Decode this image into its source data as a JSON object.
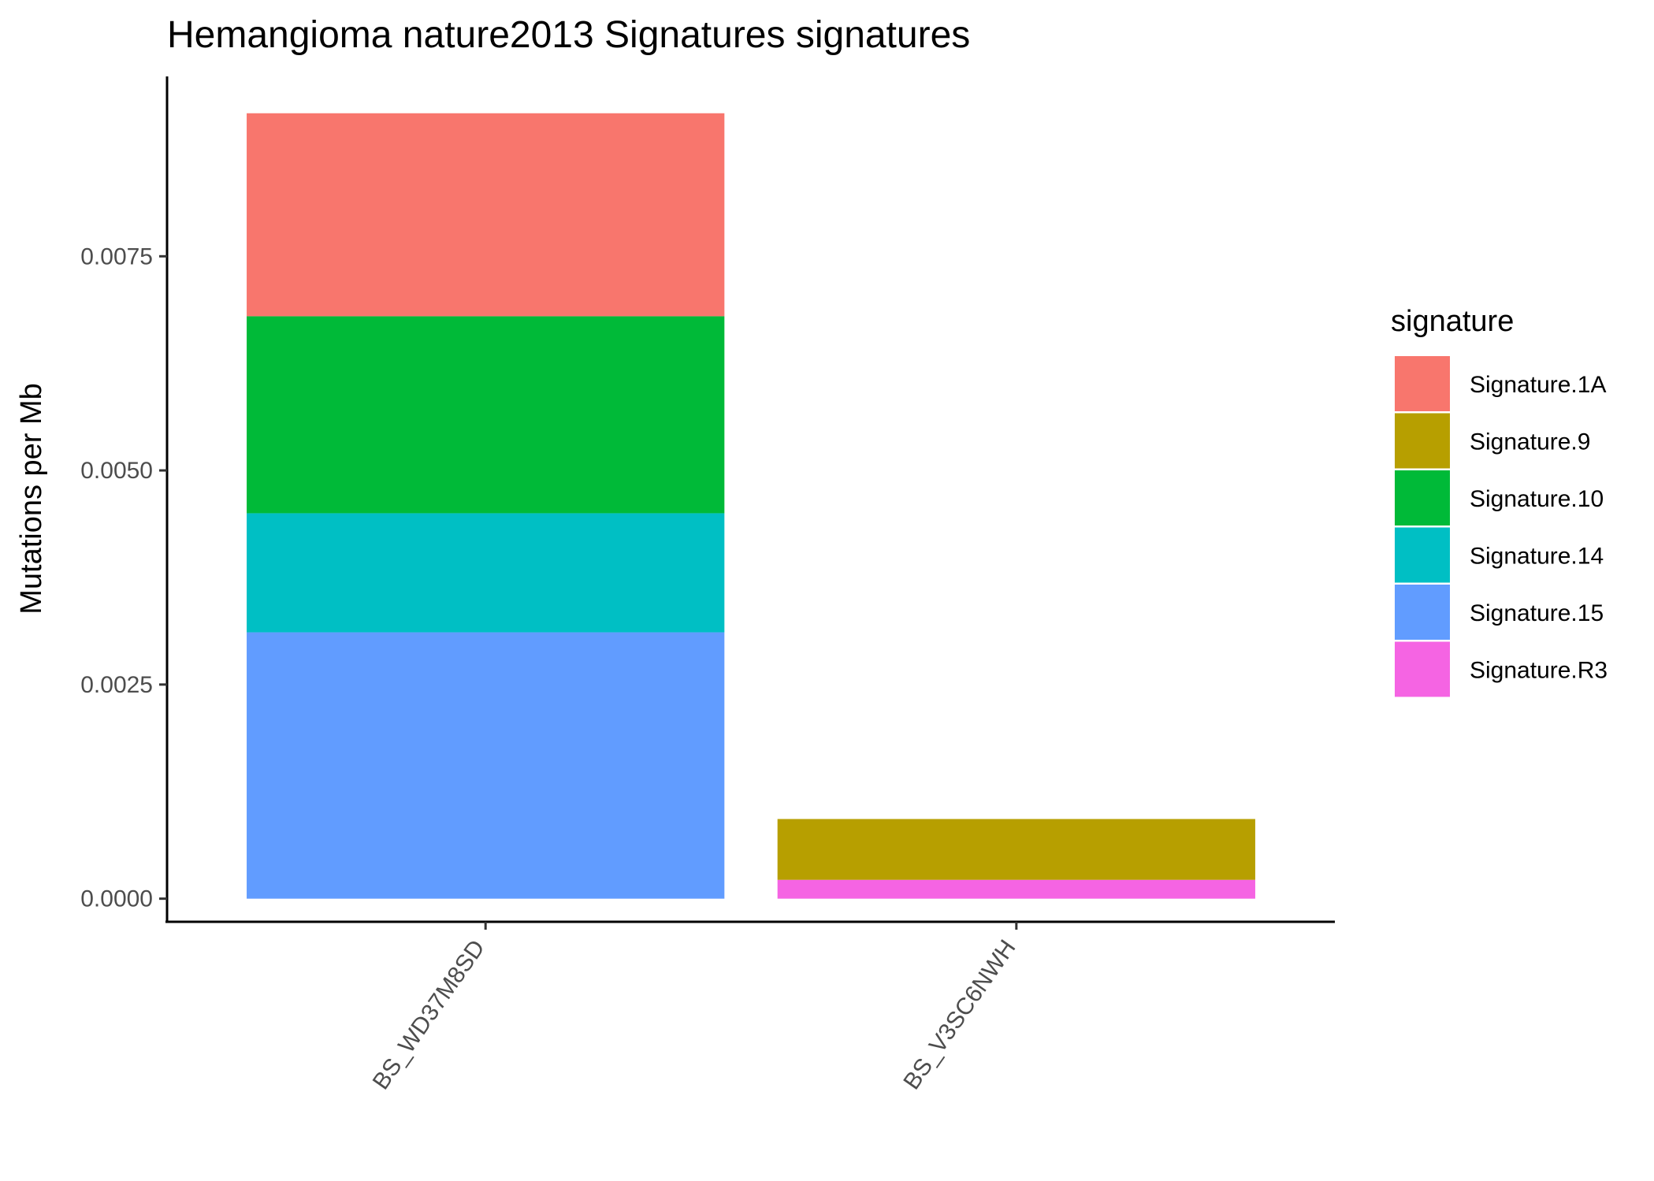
{
  "chart_data": {
    "type": "bar",
    "stacked": true,
    "title": "Hemangioma nature2013 Signatures signatures",
    "xlabel": "",
    "ylabel": "Mutations per Mb",
    "ylim": [
      -0.00027,
      0.0096
    ],
    "yticks": [
      0.0,
      0.0025,
      0.005,
      0.0075
    ],
    "ytick_labels": [
      "0.0000",
      "0.0025",
      "0.0050",
      "0.0075"
    ],
    "categories": [
      "BS_WD37M8SD",
      "BS_V3SC6NWH"
    ],
    "series": [
      {
        "name": "Signature.1A",
        "color": "#F8766D",
        "values": [
          0.00237,
          0.0
        ]
      },
      {
        "name": "Signature.9",
        "color": "#B79F00",
        "values": [
          0.0,
          0.00071
        ]
      },
      {
        "name": "Signature.10",
        "color": "#00BA38",
        "values": [
          0.0023,
          0.0
        ]
      },
      {
        "name": "Signature.14",
        "color": "#00BFC4",
        "values": [
          0.00139,
          0.0
        ]
      },
      {
        "name": "Signature.15",
        "color": "#619CFF",
        "values": [
          0.00311,
          0.0
        ]
      },
      {
        "name": "Signature.R3",
        "color": "#F564E3",
        "values": [
          0.0,
          0.00022
        ]
      }
    ],
    "stack_order_bottom_to_top": [
      "Signature.R3",
      "Signature.15",
      "Signature.14",
      "Signature.10",
      "Signature.9",
      "Signature.1A"
    ],
    "legend": {
      "title": "signature",
      "position": "right"
    },
    "grid": false
  }
}
